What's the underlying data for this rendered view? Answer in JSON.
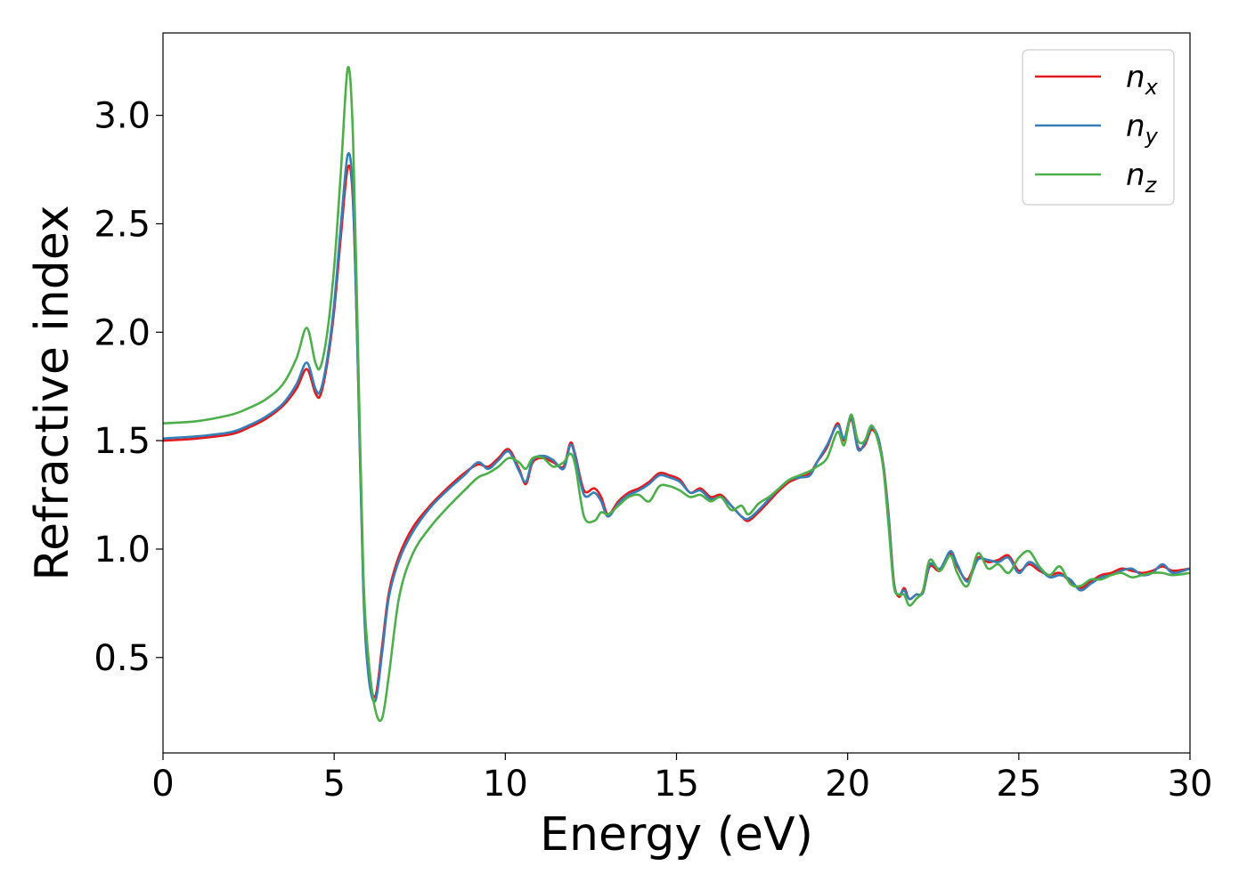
{
  "chart_data": {
    "type": "line",
    "title": "",
    "xlabel": "Energy (eV)",
    "ylabel": "Refractive index",
    "xlim": [
      0,
      30
    ],
    "ylim": [
      0.06,
      3.38
    ],
    "xticks": [
      0,
      5,
      10,
      15,
      20,
      25,
      30
    ],
    "xtick_labels": [
      "0",
      "5",
      "10",
      "15",
      "20",
      "25",
      "30"
    ],
    "yticks": [
      0.5,
      1.0,
      1.5,
      2.0,
      2.5,
      3.0
    ],
    "ytick_labels": [
      "0.5",
      "1.0",
      "1.5",
      "2.0",
      "2.5",
      "3.0"
    ],
    "grid": false,
    "legend_position": "top-right",
    "series": [
      {
        "name": "n_x",
        "label_base": "n",
        "label_sub": "x",
        "color": "#e41a1c",
        "x": [
          0,
          1,
          2,
          2.5,
          3,
          3.5,
          3.9,
          4.2,
          4.45,
          4.6,
          4.8,
          5.0,
          5.2,
          5.4,
          5.55,
          5.7,
          5.85,
          6.0,
          6.2,
          6.4,
          6.6,
          6.9,
          7.3,
          7.8,
          8.3,
          8.8,
          9.2,
          9.5,
          9.8,
          10.1,
          10.4,
          10.6,
          10.8,
          11.1,
          11.4,
          11.7,
          11.9,
          12.05,
          12.3,
          12.6,
          12.8,
          13.0,
          13.3,
          13.6,
          13.9,
          14.2,
          14.5,
          14.8,
          15.1,
          15.4,
          15.7,
          16.0,
          16.3,
          16.6,
          16.9,
          17.1,
          17.4,
          17.7,
          18.0,
          18.3,
          18.6,
          18.9,
          19.1,
          19.4,
          19.7,
          19.9,
          20.1,
          20.3,
          20.5,
          20.7,
          20.9,
          21.05,
          21.2,
          21.35,
          21.5,
          21.65,
          21.8,
          22.0,
          22.2,
          22.4,
          22.7,
          23.0,
          23.2,
          23.5,
          23.8,
          24.1,
          24.4,
          24.7,
          25.0,
          25.3,
          25.6,
          25.9,
          26.2,
          26.5,
          26.8,
          27.1,
          27.4,
          27.7,
          28.0,
          28.3,
          28.6,
          28.9,
          29.2,
          29.5,
          30
        ],
        "values": [
          1.5,
          1.51,
          1.53,
          1.56,
          1.6,
          1.66,
          1.74,
          1.83,
          1.72,
          1.71,
          1.86,
          2.1,
          2.45,
          2.76,
          2.6,
          1.8,
          0.85,
          0.45,
          0.32,
          0.55,
          0.8,
          0.97,
          1.1,
          1.2,
          1.28,
          1.35,
          1.39,
          1.38,
          1.42,
          1.46,
          1.37,
          1.3,
          1.4,
          1.42,
          1.4,
          1.38,
          1.49,
          1.43,
          1.27,
          1.28,
          1.24,
          1.16,
          1.22,
          1.26,
          1.28,
          1.31,
          1.35,
          1.34,
          1.32,
          1.26,
          1.28,
          1.24,
          1.25,
          1.2,
          1.15,
          1.13,
          1.17,
          1.22,
          1.27,
          1.31,
          1.33,
          1.35,
          1.4,
          1.47,
          1.58,
          1.5,
          1.6,
          1.47,
          1.48,
          1.55,
          1.5,
          1.38,
          1.15,
          0.85,
          0.78,
          0.82,
          0.77,
          0.79,
          0.8,
          0.92,
          0.9,
          0.98,
          0.92,
          0.86,
          0.96,
          0.94,
          0.95,
          0.97,
          0.9,
          0.93,
          0.9,
          0.88,
          0.89,
          0.85,
          0.82,
          0.85,
          0.88,
          0.89,
          0.91,
          0.9,
          0.89,
          0.9,
          0.92,
          0.9,
          0.91
        ]
      },
      {
        "name": "n_y",
        "label_base": "n",
        "label_sub": "y",
        "color": "#377eb8",
        "x": [
          0,
          1,
          2,
          2.5,
          3,
          3.5,
          3.9,
          4.2,
          4.45,
          4.6,
          4.8,
          5.0,
          5.2,
          5.4,
          5.55,
          5.7,
          5.85,
          6.0,
          6.2,
          6.4,
          6.6,
          6.9,
          7.3,
          7.8,
          8.3,
          8.8,
          9.2,
          9.5,
          9.8,
          10.1,
          10.4,
          10.6,
          10.8,
          11.1,
          11.4,
          11.7,
          11.9,
          12.05,
          12.3,
          12.6,
          12.8,
          13.0,
          13.3,
          13.6,
          13.9,
          14.2,
          14.5,
          14.8,
          15.1,
          15.4,
          15.7,
          16.0,
          16.3,
          16.6,
          16.9,
          17.1,
          17.4,
          17.7,
          18.0,
          18.3,
          18.6,
          18.9,
          19.1,
          19.4,
          19.7,
          19.9,
          20.1,
          20.3,
          20.5,
          20.7,
          20.9,
          21.05,
          21.2,
          21.35,
          21.5,
          21.65,
          21.8,
          22.0,
          22.2,
          22.4,
          22.7,
          23.0,
          23.2,
          23.5,
          23.8,
          24.1,
          24.4,
          24.7,
          25.0,
          25.3,
          25.6,
          25.9,
          26.2,
          26.5,
          26.8,
          27.1,
          27.4,
          27.7,
          28.0,
          28.3,
          28.6,
          28.9,
          29.2,
          29.5,
          30
        ],
        "values": [
          1.51,
          1.52,
          1.54,
          1.57,
          1.61,
          1.67,
          1.76,
          1.86,
          1.74,
          1.73,
          1.88,
          2.13,
          2.5,
          2.82,
          2.63,
          1.8,
          0.82,
          0.42,
          0.3,
          0.52,
          0.78,
          0.95,
          1.08,
          1.19,
          1.27,
          1.34,
          1.4,
          1.37,
          1.41,
          1.45,
          1.36,
          1.31,
          1.41,
          1.43,
          1.41,
          1.37,
          1.48,
          1.42,
          1.25,
          1.26,
          1.22,
          1.15,
          1.21,
          1.25,
          1.27,
          1.3,
          1.34,
          1.33,
          1.31,
          1.26,
          1.27,
          1.23,
          1.24,
          1.2,
          1.15,
          1.14,
          1.18,
          1.23,
          1.28,
          1.32,
          1.33,
          1.34,
          1.4,
          1.48,
          1.57,
          1.51,
          1.61,
          1.46,
          1.49,
          1.56,
          1.51,
          1.37,
          1.14,
          0.84,
          0.79,
          0.81,
          0.77,
          0.79,
          0.8,
          0.93,
          0.91,
          0.99,
          0.93,
          0.85,
          0.95,
          0.95,
          0.94,
          0.96,
          0.89,
          0.94,
          0.91,
          0.87,
          0.88,
          0.86,
          0.81,
          0.84,
          0.87,
          0.88,
          0.9,
          0.91,
          0.88,
          0.89,
          0.93,
          0.89,
          0.91
        ]
      },
      {
        "name": "n_z",
        "label_base": "n",
        "label_sub": "z",
        "color": "#4daf4a",
        "x": [
          0,
          1,
          2,
          2.5,
          3,
          3.5,
          3.9,
          4.2,
          4.45,
          4.6,
          4.8,
          5.0,
          5.2,
          5.4,
          5.55,
          5.7,
          5.85,
          6.0,
          6.2,
          6.4,
          6.6,
          6.9,
          7.3,
          7.8,
          8.3,
          8.8,
          9.2,
          9.5,
          9.8,
          10.1,
          10.4,
          10.6,
          10.8,
          11.1,
          11.4,
          11.7,
          11.9,
          12.05,
          12.3,
          12.6,
          12.8,
          13.0,
          13.3,
          13.6,
          13.9,
          14.2,
          14.5,
          14.8,
          15.1,
          15.4,
          15.7,
          16.0,
          16.3,
          16.6,
          16.9,
          17.1,
          17.4,
          17.7,
          18.0,
          18.3,
          18.6,
          18.9,
          19.1,
          19.4,
          19.7,
          19.9,
          20.1,
          20.3,
          20.5,
          20.7,
          20.9,
          21.05,
          21.2,
          21.35,
          21.5,
          21.65,
          21.8,
          22.0,
          22.2,
          22.4,
          22.7,
          23.0,
          23.2,
          23.5,
          23.8,
          24.1,
          24.4,
          24.7,
          25.0,
          25.3,
          25.6,
          25.9,
          26.2,
          26.5,
          26.8,
          27.1,
          27.4,
          27.7,
          28.0,
          28.3,
          28.6,
          28.9,
          29.2,
          29.5,
          30
        ],
        "values": [
          1.58,
          1.59,
          1.62,
          1.65,
          1.69,
          1.76,
          1.88,
          2.02,
          1.86,
          1.84,
          2.0,
          2.3,
          2.75,
          3.22,
          2.9,
          1.9,
          0.9,
          0.5,
          0.26,
          0.22,
          0.42,
          0.78,
          0.98,
          1.1,
          1.19,
          1.27,
          1.33,
          1.35,
          1.38,
          1.42,
          1.4,
          1.37,
          1.42,
          1.42,
          1.38,
          1.4,
          1.44,
          1.38,
          1.15,
          1.13,
          1.17,
          1.16,
          1.2,
          1.24,
          1.25,
          1.22,
          1.29,
          1.29,
          1.27,
          1.24,
          1.25,
          1.22,
          1.24,
          1.18,
          1.2,
          1.16,
          1.21,
          1.24,
          1.28,
          1.32,
          1.34,
          1.36,
          1.38,
          1.42,
          1.54,
          1.48,
          1.62,
          1.5,
          1.5,
          1.57,
          1.49,
          1.36,
          1.1,
          0.83,
          0.79,
          0.79,
          0.74,
          0.77,
          0.81,
          0.95,
          0.9,
          0.97,
          0.89,
          0.83,
          0.98,
          0.91,
          0.93,
          0.89,
          0.96,
          0.99,
          0.92,
          0.88,
          0.92,
          0.84,
          0.83,
          0.86,
          0.86,
          0.88,
          0.89,
          0.87,
          0.88,
          0.89,
          0.89,
          0.88,
          0.89
        ]
      }
    ]
  }
}
